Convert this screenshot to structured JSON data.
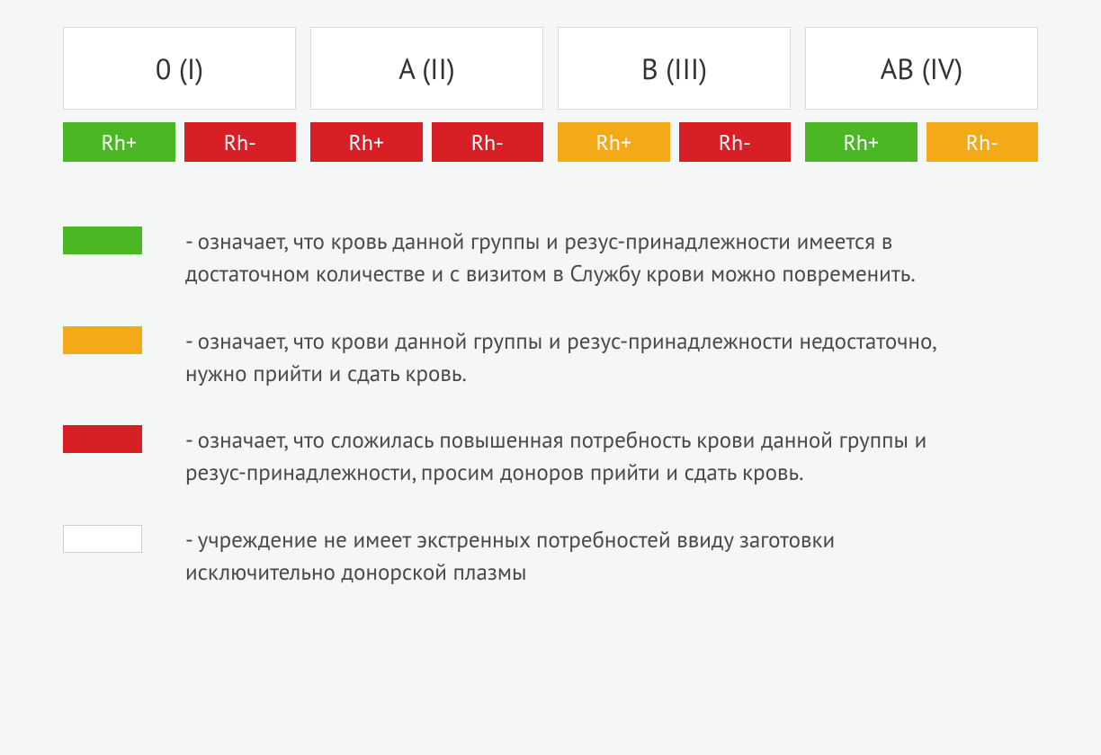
{
  "colors": {
    "green": "#4bb725",
    "red": "#d81f26",
    "amber": "#f3a918",
    "white": "#ffffff",
    "cell_bg": "#ffffff",
    "cell_border": "#d8d8d8",
    "page_bg": "#f5f6f6",
    "text": "#4a4a4a",
    "group_text": "#333333"
  },
  "blood_groups": [
    {
      "label": "0 (I)",
      "rh": [
        {
          "label": "Rh+",
          "status_color": "#4bb725"
        },
        {
          "label": "Rh-",
          "status_color": "#d81f26"
        }
      ]
    },
    {
      "label": "A (II)",
      "rh": [
        {
          "label": "Rh+",
          "status_color": "#d81f26"
        },
        {
          "label": "Rh-",
          "status_color": "#d81f26"
        }
      ]
    },
    {
      "label": "B (III)",
      "rh": [
        {
          "label": "Rh+",
          "status_color": "#f3a918"
        },
        {
          "label": "Rh-",
          "status_color": "#d81f26"
        }
      ]
    },
    {
      "label": "AB (IV)",
      "rh": [
        {
          "label": "Rh+",
          "status_color": "#4bb725"
        },
        {
          "label": "Rh-",
          "status_color": "#f3a918"
        }
      ]
    }
  ],
  "legend": [
    {
      "swatch_color": "#4bb725",
      "bordered": false,
      "text": "- означает, что кровь данной группы и резус-принадлежности имеется в достаточном количестве и с визитом в Службу крови можно повременить."
    },
    {
      "swatch_color": "#f3a918",
      "bordered": false,
      "text": "- означает, что крови данной группы и резус-принадлежности недостаточно, нужно прийти и сдать кровь."
    },
    {
      "swatch_color": "#d81f26",
      "bordered": false,
      "text": "- означает, что сложилась повышенная потребность крови данной группы и резус-принадлежности, просим доноров прийти и сдать кровь."
    },
    {
      "swatch_color": "#ffffff",
      "bordered": true,
      "text": "- учреждение не имеет экстренных потребностей ввиду заготовки исключительно донорской плазмы"
    }
  ]
}
